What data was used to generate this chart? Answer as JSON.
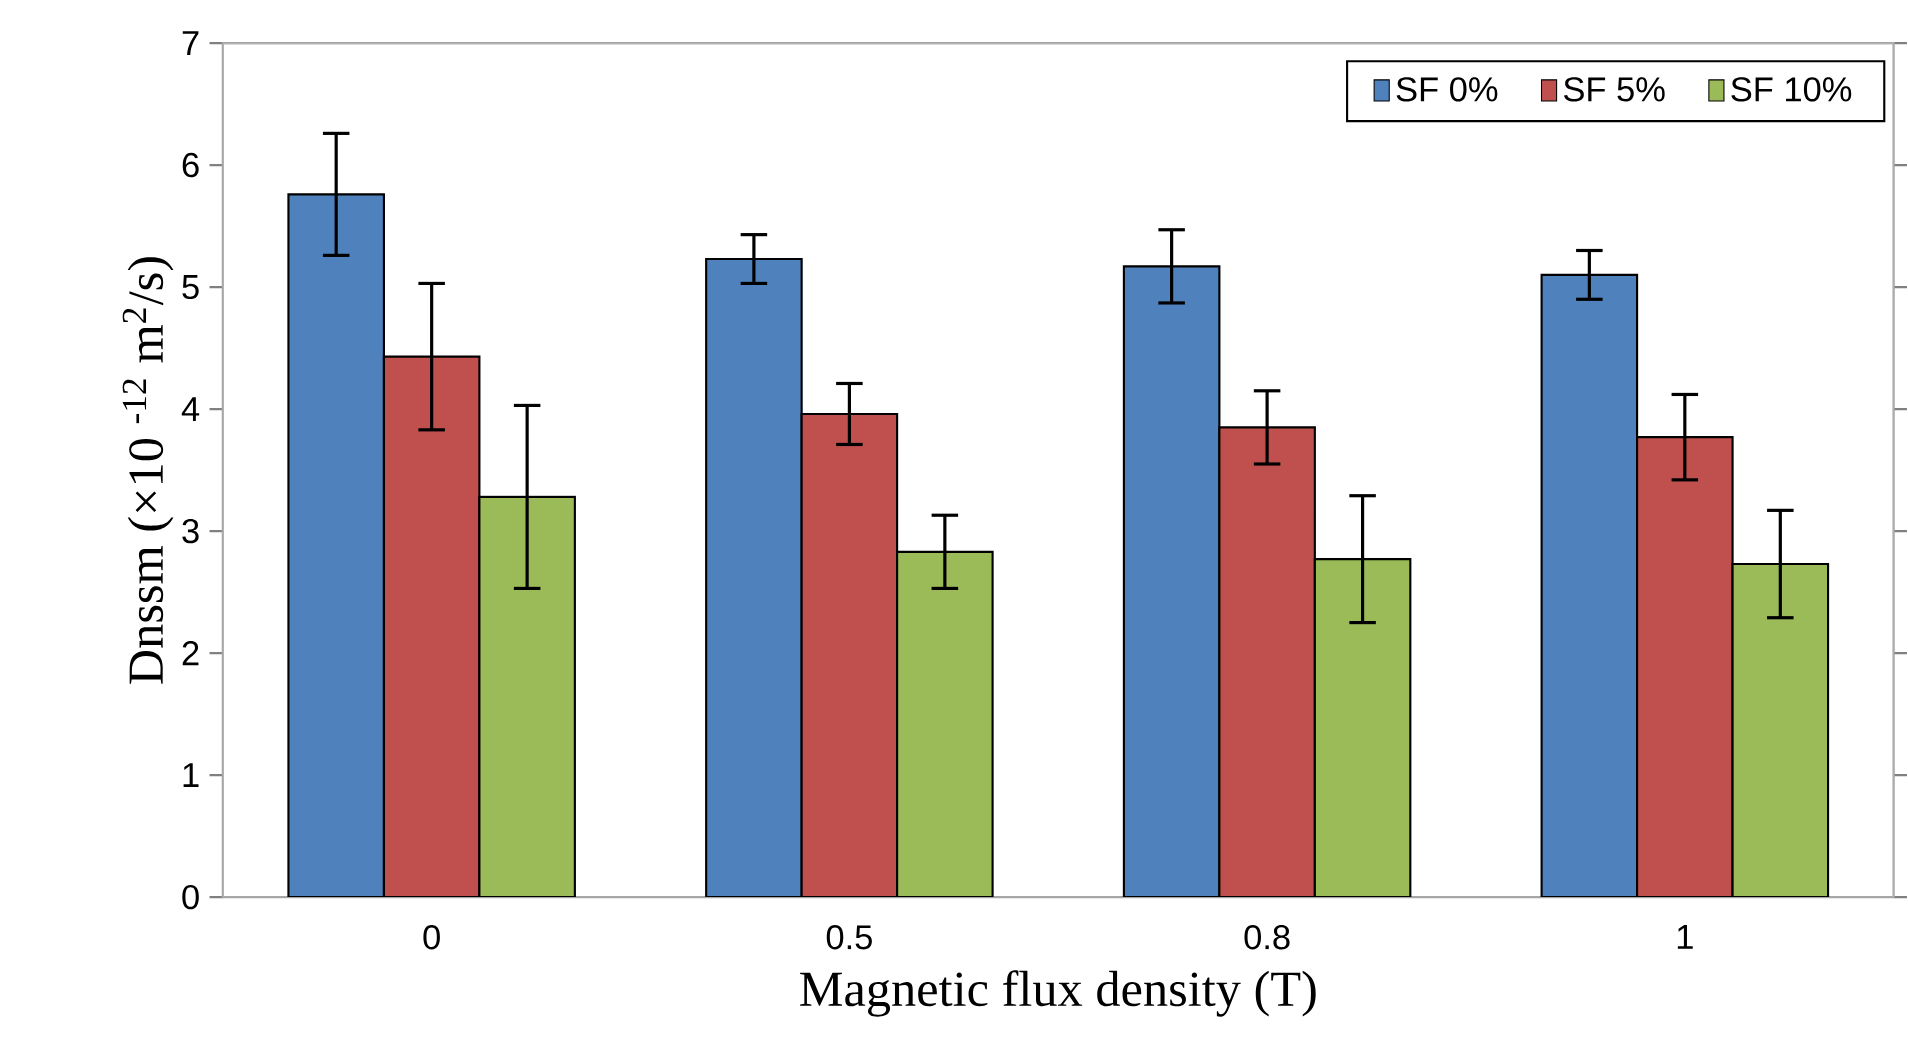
{
  "chart_data": {
    "type": "bar",
    "xlabel": "Magnetic flux density (T)",
    "ylabel": "Dnssm (×10 $^{-12}$ m$^{2}$/s)",
    "categories": [
      "0",
      "0.5",
      "0.8",
      "1"
    ],
    "series": [
      {
        "name": "SF 0%",
        "color": "#4f81bd",
        "values": [
          5.76,
          5.23,
          5.17,
          5.1
        ],
        "errors": [
          0.5,
          0.2,
          0.3,
          0.2
        ]
      },
      {
        "name": "SF 5%",
        "color": "#c0504d",
        "values": [
          4.43,
          3.96,
          3.85,
          3.77
        ],
        "errors": [
          0.6,
          0.25,
          0.3,
          0.35
        ]
      },
      {
        "name": "SF 10%",
        "color": "#9bbb59",
        "values": [
          3.28,
          2.83,
          2.77,
          2.73
        ],
        "errors": [
          0.75,
          0.3,
          0.52,
          0.44
        ]
      }
    ],
    "ylim": [
      0,
      7
    ],
    "yticks": [
      0,
      1,
      2,
      3,
      4,
      5,
      6,
      7
    ],
    "legend": "top right"
  }
}
